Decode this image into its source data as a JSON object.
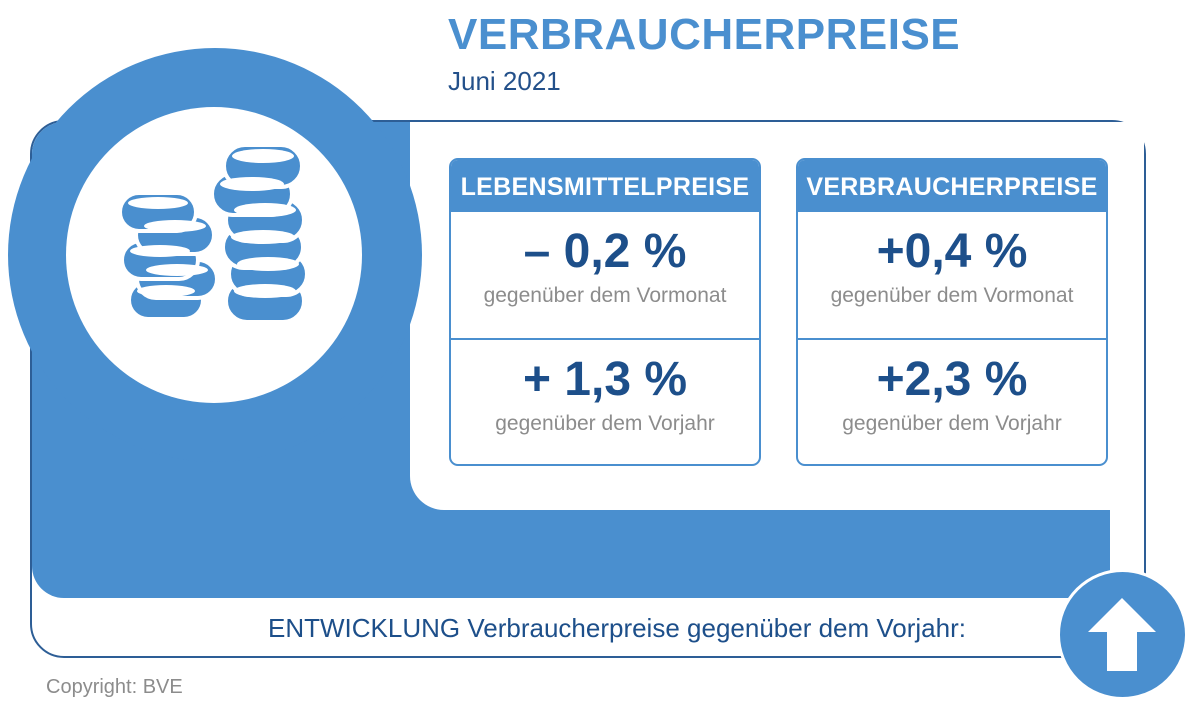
{
  "header": {
    "title": "VERBRAUCHERPREISE",
    "subtitle": "Juni 2021"
  },
  "cards": [
    {
      "heading": "LEBENSMITTELPREISE",
      "rows": [
        {
          "value": "– 0,2 %",
          "note": "gegenüber dem Vormonat"
        },
        {
          "value": "+ 1,3 %",
          "note": "gegenüber dem Vorjahr"
        }
      ]
    },
    {
      "heading": "VERBRAUCHERPREISE",
      "rows": [
        {
          "value": "+0,4 %",
          "note": "gegenüber dem Vormonat"
        },
        {
          "value": "+2,3 %",
          "note": "gegenüber dem Vorjahr"
        }
      ]
    }
  ],
  "footer": {
    "trend_label": "ENTWICKLUNG Verbraucherpreise gegenüber dem Vorjahr:",
    "trend_icon": "arrow-up-icon",
    "copyright": "Copyright: BVE"
  },
  "icons": {
    "main": "coins-icon"
  },
  "colors": {
    "accent": "#4a8fcf",
    "dark_blue": "#1d4f8a",
    "frame": "#2d5e96",
    "note_gray": "#8c8c8c"
  }
}
